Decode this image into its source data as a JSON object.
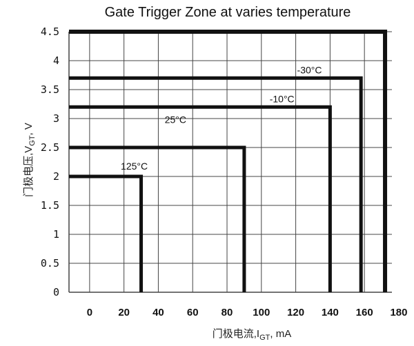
{
  "chart_data": {
    "type": "line",
    "title": "Gate Trigger Zone at varies temperature",
    "xlabel_main": "门极电流,I",
    "xlabel_sub": "GT",
    "xlabel_unit": ",  mA",
    "ylabel_main": "门极电压,V",
    "ylabel_sub": "GT",
    "ylabel_unit": ",  V",
    "x_ticks": [
      "0",
      "20",
      "40",
      "60",
      "80",
      "100",
      "120",
      "140",
      "160",
      "180"
    ],
    "y_ticks": [
      "0",
      "0.5",
      "1",
      "1.5",
      "2",
      "2.5",
      "3",
      "3.5",
      "4",
      "4.5"
    ],
    "xlim": [
      -12,
      176
    ],
    "ylim": [
      0,
      4.5
    ],
    "grid": true,
    "series": [
      {
        "name": "-30°C",
        "points": [
          [
            -12,
            3.7
          ],
          [
            158,
            3.7
          ],
          [
            158,
            0
          ]
        ]
      },
      {
        "name": "-10°C",
        "points": [
          [
            -12,
            3.2
          ],
          [
            140,
            3.2
          ],
          [
            140,
            0
          ]
        ]
      },
      {
        "name": "25°C",
        "points": [
          [
            -12,
            2.5
          ],
          [
            90,
            2.5
          ],
          [
            90,
            0
          ]
        ]
      },
      {
        "name": "125°C",
        "points": [
          [
            -12,
            2.0
          ],
          [
            30,
            2.0
          ],
          [
            30,
            0
          ]
        ]
      }
    ],
    "outer_boundary": {
      "points": [
        [
          -12,
          4.5
        ],
        [
          172,
          4.5
        ],
        [
          172,
          0
        ]
      ]
    },
    "styles": {
      "line_color": "#111111",
      "grid_color": "#444444",
      "background": "#ffffff"
    }
  }
}
